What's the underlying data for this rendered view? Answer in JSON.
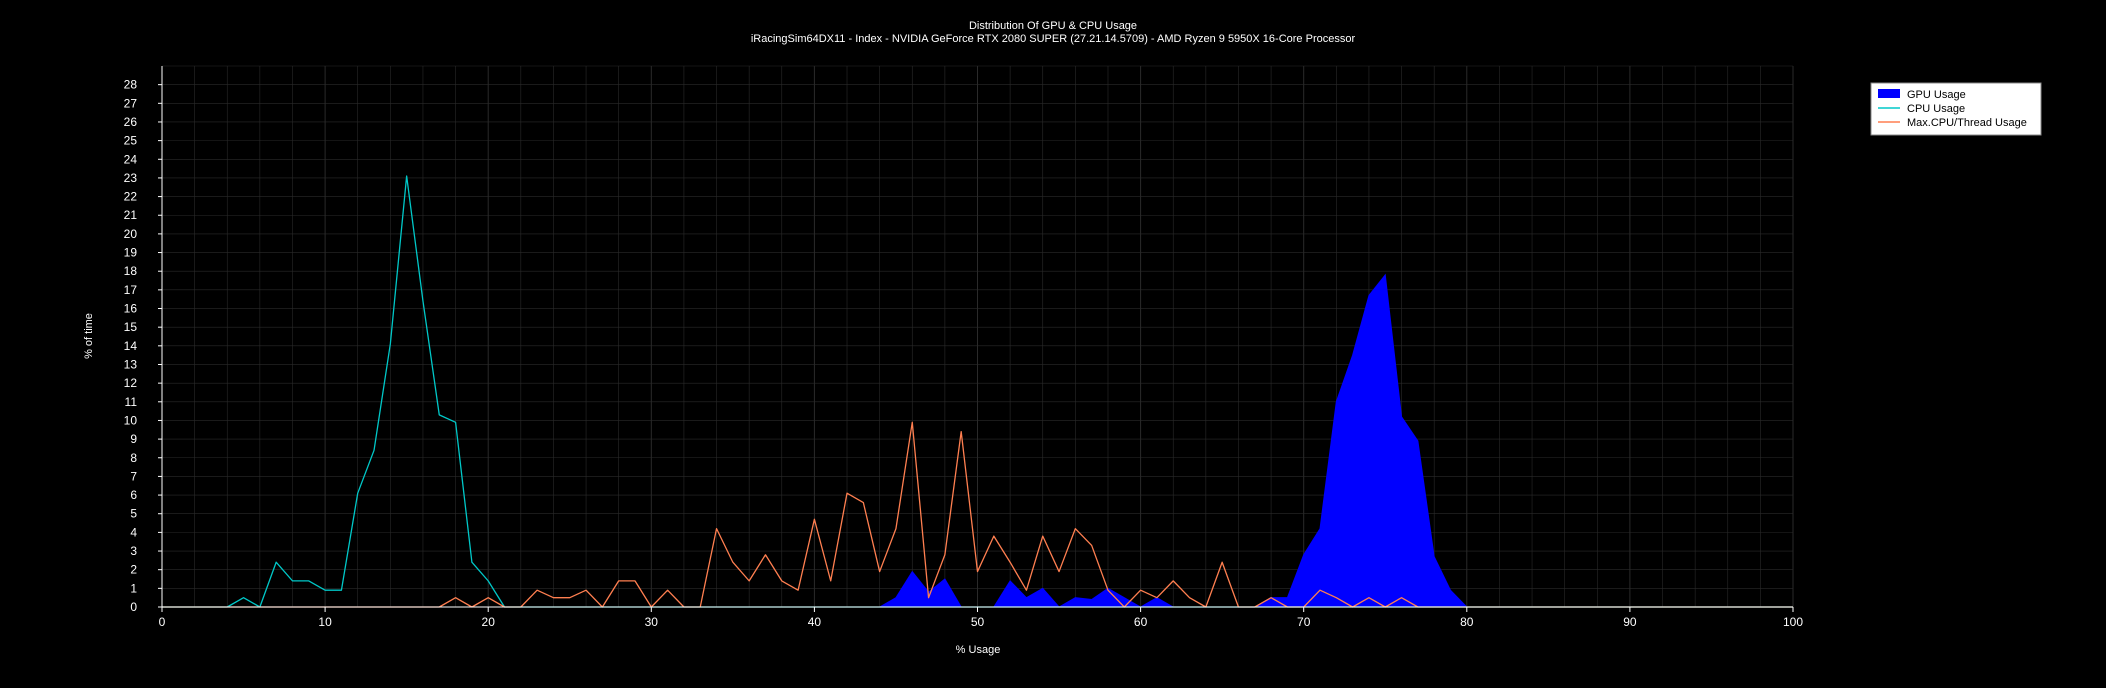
{
  "chart_data": {
    "type": "area",
    "title": "Distribution Of GPU & CPU Usage",
    "subtitle": "iRacingSim64DX11 - Index - NVIDIA GeForce RTX 2080 SUPER (27.21.14.5709) - AMD Ryzen 9 5950X 16-Core Processor",
    "xlabel": "% Usage",
    "ylabel": "% of time",
    "xlim": [
      0,
      100
    ],
    "ylim": [
      0,
      29
    ],
    "x_ticks": [
      0,
      10,
      20,
      30,
      40,
      50,
      60,
      70,
      80,
      90,
      100
    ],
    "y_ticks": [
      0,
      1,
      2,
      3,
      4,
      5,
      6,
      7,
      8,
      9,
      10,
      11,
      12,
      13,
      14,
      15,
      16,
      17,
      18,
      19,
      20,
      21,
      22,
      23,
      24,
      25,
      26,
      27,
      28
    ],
    "grid": true,
    "legend_position": "top-right",
    "series": [
      {
        "name": "GPU Usage",
        "style": "area",
        "color": "#0000ff",
        "points": [
          [
            0,
            0
          ],
          [
            44,
            0
          ],
          [
            45,
            0.5
          ],
          [
            46,
            1.9
          ],
          [
            47,
            0.8
          ],
          [
            48,
            1.5
          ],
          [
            49,
            0
          ],
          [
            51,
            0
          ],
          [
            52,
            1.4
          ],
          [
            53,
            0.5
          ],
          [
            54,
            1
          ],
          [
            55,
            0
          ],
          [
            56,
            0.5
          ],
          [
            57,
            0.4
          ],
          [
            58,
            1
          ],
          [
            59,
            0.5
          ],
          [
            60,
            0
          ],
          [
            61,
            0.5
          ],
          [
            62,
            0
          ],
          [
            67,
            0
          ],
          [
            68,
            0.5
          ],
          [
            69,
            0.5
          ],
          [
            70,
            2.8
          ],
          [
            71,
            4.2
          ],
          [
            72,
            11
          ],
          [
            73,
            13.5
          ],
          [
            74,
            16.7
          ],
          [
            75,
            17.8
          ],
          [
            76,
            10.2
          ],
          [
            77,
            8.9
          ],
          [
            78,
            2.7
          ],
          [
            79,
            0.9
          ],
          [
            80,
            0
          ],
          [
            100,
            0
          ]
        ]
      },
      {
        "name": "CPU Usage",
        "style": "line",
        "color": "#00c8c8",
        "points": [
          [
            0,
            0
          ],
          [
            4,
            0
          ],
          [
            5,
            0.5
          ],
          [
            6,
            0
          ],
          [
            7,
            2.4
          ],
          [
            8,
            1.4
          ],
          [
            9,
            1.4
          ],
          [
            10,
            0.9
          ],
          [
            11,
            0.9
          ],
          [
            12,
            6.1
          ],
          [
            13,
            8.4
          ],
          [
            14,
            14.1
          ],
          [
            15,
            23.1
          ],
          [
            16,
            16.4
          ],
          [
            17,
            10.3
          ],
          [
            18,
            9.9
          ],
          [
            19,
            2.4
          ],
          [
            20,
            1.4
          ],
          [
            21,
            0
          ],
          [
            100,
            0
          ]
        ]
      },
      {
        "name": "Max.CPU/Thread Usage",
        "style": "line",
        "color": "#ff7f50",
        "points": [
          [
            0,
            0
          ],
          [
            17,
            0
          ],
          [
            18,
            0.5
          ],
          [
            19,
            0
          ],
          [
            20,
            0.5
          ],
          [
            21,
            0
          ],
          [
            22,
            0
          ],
          [
            23,
            0.9
          ],
          [
            24,
            0.5
          ],
          [
            25,
            0.5
          ],
          [
            26,
            0.9
          ],
          [
            27,
            0
          ],
          [
            28,
            1.4
          ],
          [
            29,
            1.4
          ],
          [
            30,
            0
          ],
          [
            31,
            0.9
          ],
          [
            32,
            0
          ],
          [
            33,
            0
          ],
          [
            34,
            4.2
          ],
          [
            35,
            2.4
          ],
          [
            36,
            1.4
          ],
          [
            37,
            2.8
          ],
          [
            38,
            1.4
          ],
          [
            39,
            0.9
          ],
          [
            40,
            4.7
          ],
          [
            41,
            1.4
          ],
          [
            42,
            6.1
          ],
          [
            43,
            5.6
          ],
          [
            44,
            1.9
          ],
          [
            45,
            4.2
          ],
          [
            46,
            9.9
          ],
          [
            47,
            0.5
          ],
          [
            48,
            2.8
          ],
          [
            49,
            9.4
          ],
          [
            50,
            1.9
          ],
          [
            51,
            3.8
          ],
          [
            52,
            2.4
          ],
          [
            53,
            0.9
          ],
          [
            54,
            3.8
          ],
          [
            55,
            1.9
          ],
          [
            56,
            4.2
          ],
          [
            57,
            3.3
          ],
          [
            58,
            0.9
          ],
          [
            59,
            0
          ],
          [
            60,
            0.9
          ],
          [
            61,
            0.5
          ],
          [
            62,
            1.4
          ],
          [
            63,
            0.5
          ],
          [
            64,
            0
          ],
          [
            65,
            2.4
          ],
          [
            66,
            0
          ],
          [
            67,
            0
          ],
          [
            68,
            0.5
          ],
          [
            69,
            0
          ],
          [
            70,
            0
          ],
          [
            71,
            0.9
          ],
          [
            72,
            0.5
          ],
          [
            73,
            0
          ],
          [
            74,
            0.5
          ],
          [
            75,
            0
          ],
          [
            76,
            0.5
          ],
          [
            77,
            0
          ],
          [
            100,
            0
          ]
        ]
      }
    ]
  },
  "colors": {
    "background": "#000000",
    "axis": "#ffffff",
    "grid": "#2a2a2a",
    "legend_background": "#ffffff",
    "legend_text": "#000000"
  }
}
